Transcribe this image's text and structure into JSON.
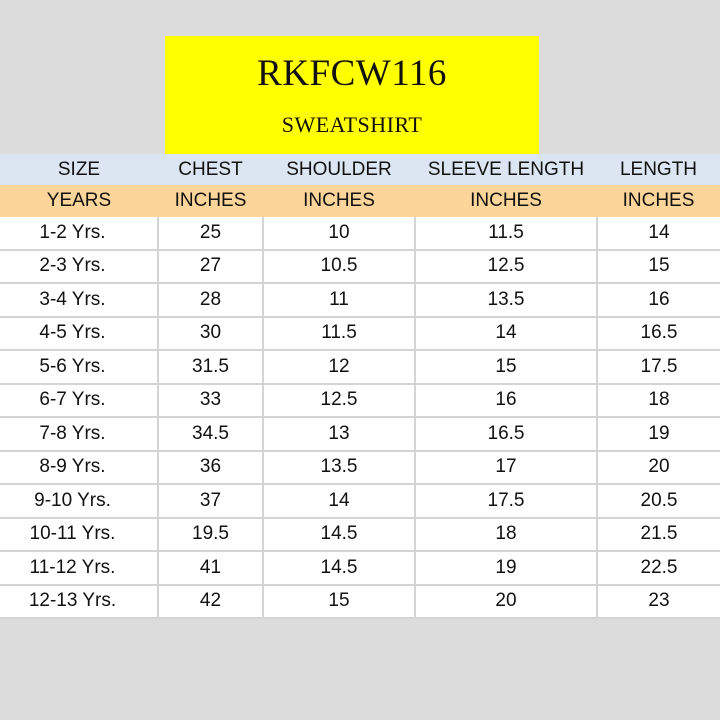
{
  "title": {
    "code": "RKFCW116",
    "product": "SWEATSHIRT"
  },
  "table": {
    "headers": [
      "SIZE",
      "CHEST",
      "SHOULDER",
      "SLEEVE LENGTH",
      "LENGTH"
    ],
    "units": [
      "YEARS",
      "INCHES",
      "INCHES",
      "INCHES",
      "INCHES"
    ],
    "rows": [
      [
        "1-2 Yrs.",
        "25",
        "10",
        "11.5",
        "14"
      ],
      [
        "2-3 Yrs.",
        "27",
        "10.5",
        "12.5",
        "15"
      ],
      [
        "3-4 Yrs.",
        "28",
        "11",
        "13.5",
        "16"
      ],
      [
        "4-5 Yrs.",
        "30",
        "11.5",
        "14",
        "16.5"
      ],
      [
        "5-6 Yrs.",
        "31.5",
        "12",
        "15",
        "17.5"
      ],
      [
        "6-7 Yrs.",
        "33",
        "12.5",
        "16",
        "18"
      ],
      [
        "7-8 Yrs.",
        "34.5",
        "13",
        "16.5",
        "19"
      ],
      [
        "8-9 Yrs.",
        "36",
        "13.5",
        "17",
        "20"
      ],
      [
        "9-10 Yrs.",
        "37",
        "14",
        "17.5",
        "20.5"
      ],
      [
        "10-11 Yrs.",
        "19.5",
        "14.5",
        "18",
        "21.5"
      ],
      [
        "11-12 Yrs.",
        "41",
        "14.5",
        "19",
        "22.5"
      ],
      [
        "12-13 Yrs.",
        "42",
        "15",
        "20",
        "23"
      ]
    ]
  },
  "colors": {
    "title_background": "#ffff00",
    "header_background": "#dce6f2",
    "unit_background": "#fcd59a",
    "page_background": "#dcdcdc"
  }
}
